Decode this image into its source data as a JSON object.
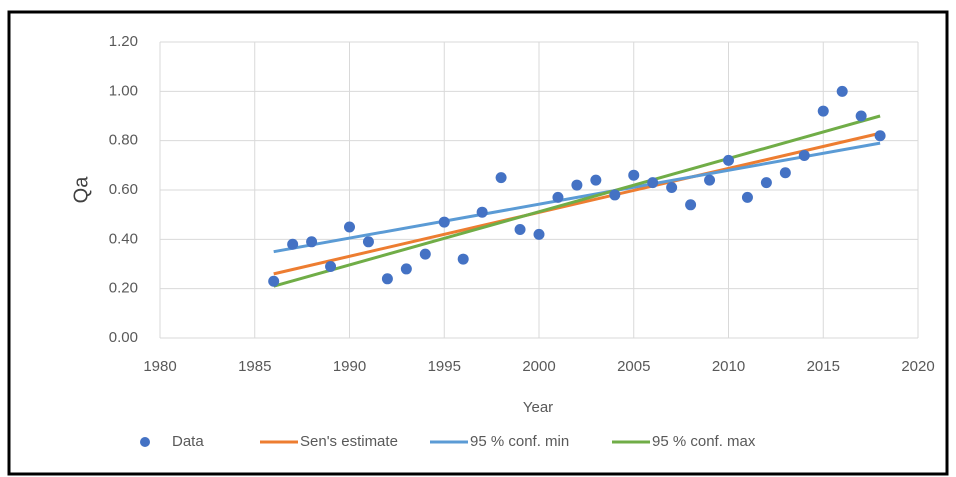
{
  "chart_data": {
    "type": "scatter",
    "xlabel": "Year",
    "ylabel": "Qa",
    "xlim": [
      1980,
      2020
    ],
    "xticks": [
      1980,
      1985,
      1990,
      1995,
      2000,
      2005,
      2010,
      2015,
      2020
    ],
    "ylim": [
      0,
      1.2
    ],
    "yticks": [
      {
        "value": 0,
        "label": "0.00"
      },
      {
        "value": 0.2,
        "label": "0.20"
      },
      {
        "value": 0.4,
        "label": "0.40"
      },
      {
        "value": 0.6,
        "label": "0.60"
      },
      {
        "value": 0.8,
        "label": "0.80"
      },
      {
        "value": 1.0,
        "label": "1.00"
      },
      {
        "value": 1.2,
        "label": "1.20"
      }
    ],
    "grid": true,
    "legend": "bottom",
    "series": [
      {
        "name": "Data",
        "color": "#4472c4",
        "mode": "markers",
        "x": [
          1986,
          1987,
          1988,
          1989,
          1990,
          1991,
          1992,
          1993,
          1994,
          1995,
          1996,
          1997,
          1998,
          1999,
          2000,
          2001,
          2002,
          2003,
          2004,
          2005,
          2006,
          2007,
          2008,
          2009,
          2010,
          2011,
          2012,
          2013,
          2014,
          2015,
          2016,
          2017,
          2018
        ],
        "values": [
          0.23,
          0.38,
          0.39,
          0.29,
          0.45,
          0.39,
          0.24,
          0.28,
          0.34,
          0.47,
          0.32,
          0.51,
          0.65,
          0.44,
          0.42,
          0.57,
          0.62,
          0.64,
          0.58,
          0.66,
          0.63,
          0.61,
          0.54,
          0.64,
          0.72,
          0.57,
          0.63,
          0.67,
          0.74,
          0.92,
          1.0,
          0.9,
          0.82
        ]
      },
      {
        "name": "Sen's estimate",
        "color": "#ed7d31",
        "mode": "line",
        "x": [
          1986,
          2018
        ],
        "values": [
          0.26,
          0.83
        ]
      },
      {
        "name": "95 % conf. min",
        "color": "#5b9bd5",
        "mode": "line",
        "x": [
          1986,
          2018
        ],
        "values": [
          0.35,
          0.79
        ]
      },
      {
        "name": "95 % conf. max",
        "color": "#70ad47",
        "mode": "line",
        "x": [
          1986,
          2018
        ],
        "values": [
          0.21,
          0.9
        ]
      }
    ]
  }
}
